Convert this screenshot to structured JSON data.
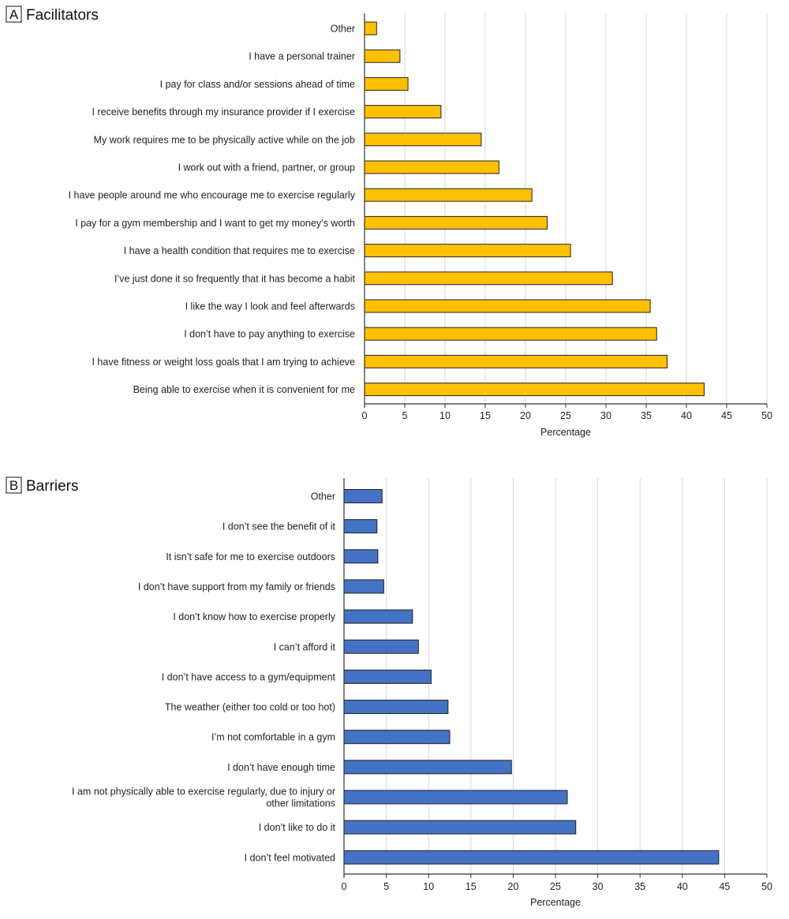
{
  "chart_data": [
    {
      "type": "bar",
      "orientation": "horizontal",
      "panel_letter": "A",
      "title": "Facilitators",
      "xlabel": "Percentage",
      "ylabel": "",
      "xlim": [
        0,
        50
      ],
      "xticks": [
        0,
        5,
        10,
        15,
        20,
        25,
        30,
        35,
        40,
        45,
        50
      ],
      "grid": "vertical",
      "color": "#FFC000",
      "categories": [
        "Other",
        "I have a personal trainer",
        "I pay for class and/or sessions ahead of time",
        "I receive benefits through my insurance provider if I exercise",
        "My work requires me to be physically active while on the job",
        "I work out with a friend, partner, or group",
        "I have people around me who encourage me to exercise regularly",
        "I pay for a gym membership and I want to get my money’s worth",
        "I have a health condition that requires me to exercise",
        "I’ve just done it so frequently that it has become a habit",
        "I like the way I look and feel afterwards",
        "I don’t have to pay anything to exercise",
        "I have fitness or weight loss goals that I am trying to achieve",
        "Being able to exercise when it is convenient for me"
      ],
      "values": [
        1.5,
        4.4,
        5.4,
        9.5,
        14.5,
        16.7,
        20.8,
        22.7,
        25.6,
        30.8,
        35.5,
        36.3,
        37.6,
        42.2
      ]
    },
    {
      "type": "bar",
      "orientation": "horizontal",
      "panel_letter": "B",
      "title": "Barriers",
      "xlabel": "Percentage",
      "ylabel": "",
      "xlim": [
        0,
        50
      ],
      "xticks": [
        0,
        5,
        10,
        15,
        20,
        25,
        30,
        35,
        40,
        45,
        50
      ],
      "grid": "vertical",
      "color": "#4472C4",
      "categories": [
        "Other",
        "I don’t see the benefit of it",
        "It isn’t safe for me to exercise outdoors",
        "I don’t have support from my family or friends",
        "I don’t know how to exercise properly",
        "I can’t afford it",
        "I don’t have access to a gym/equipment",
        "The weather (either too cold or too hot)",
        "I’m not comfortable in a gym",
        "I don’t have enough time",
        "I am not physically able to exercise regularly, due to injury or other limitations",
        "I don’t like to do it",
        "I don’t feel motivated"
      ],
      "values": [
        4.5,
        3.9,
        4.0,
        4.7,
        8.1,
        8.8,
        10.3,
        12.3,
        12.5,
        19.8,
        26.4,
        27.4,
        44.3
      ]
    }
  ]
}
